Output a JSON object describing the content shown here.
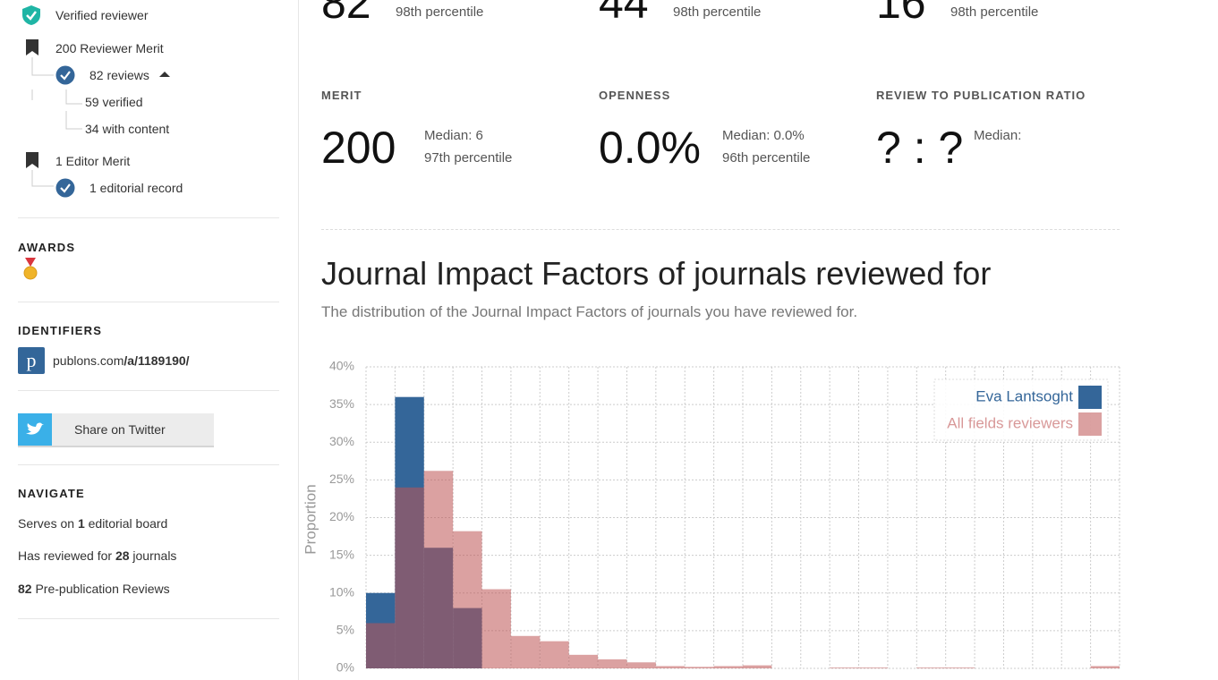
{
  "sidebar": {
    "verified": "Verified reviewer",
    "reviewer_merit": "200 Reviewer Merit",
    "reviews": "82 reviews",
    "verified_reviews": "59 verified",
    "with_content": "34 with content",
    "editor_merit": "1 Editor Merit",
    "editorial_record": "1 editorial record",
    "awards_heading": "AWARDS",
    "identifiers_heading": "IDENTIFIERS",
    "identifier": {
      "host": "publons.com",
      "path": "/a/1189190/"
    },
    "share": "Share on Twitter",
    "navigate_heading": "NAVIGATE",
    "navigate": [
      {
        "before": "Serves on ",
        "bold": "1",
        "after": " editorial board"
      },
      {
        "before": "Has reviewed for ",
        "bold": "28",
        "after": " journals"
      },
      {
        "bold": "82",
        "after": " Pre-publication Reviews"
      }
    ]
  },
  "stats_top": [
    {
      "value": "82",
      "percentile": "98th percentile"
    },
    {
      "value": "44",
      "percentile": "98th percentile"
    },
    {
      "value": "16",
      "percentile": "98th percentile"
    }
  ],
  "stats": [
    {
      "label": "MERIT",
      "value": "200",
      "median": "Median: 6",
      "percentile": "97th percentile"
    },
    {
      "label": "OPENNESS",
      "value": "0.0%",
      "median": "Median: 0.0%",
      "percentile": "96th percentile"
    },
    {
      "label": "REVIEW TO PUBLICATION RATIO",
      "value": "? : ?",
      "median": "Median:"
    }
  ],
  "chart_data": {
    "type": "histogram",
    "title": "Journal Impact Factors of journals reviewed for",
    "subtitle": "The distribution of the Journal Impact Factors of journals you have reviewed for.",
    "y_label": "Proportion",
    "categories": [
      null,
      null,
      null,
      null,
      null,
      null,
      null,
      null,
      null,
      null,
      null,
      null,
      null,
      null,
      null,
      null,
      null,
      null,
      null,
      null,
      null,
      null,
      null,
      null,
      null,
      null
    ],
    "series": [
      {
        "name": "Eva Lantsoght",
        "color": "#346699",
        "values": [
          10,
          36,
          16,
          8,
          0,
          0,
          0,
          0,
          0,
          0,
          0,
          0,
          0,
          0,
          0,
          0,
          0,
          0,
          0,
          0,
          0,
          0,
          0,
          0,
          0,
          0
        ]
      },
      {
        "name": "All fields reviewers",
        "color": "#be5353",
        "values": [
          6,
          24,
          26.2,
          18.2,
          10.5,
          4.3,
          3.6,
          1.8,
          1.2,
          0.8,
          0.3,
          0.2,
          0.3,
          0.4,
          0,
          0,
          0.1,
          0.1,
          0,
          0.1,
          0.1,
          0,
          0,
          0,
          0,
          0.3
        ]
      }
    ],
    "ylim": [
      0,
      40
    ],
    "yticks": [
      {
        "value": 0,
        "label": "0%"
      },
      {
        "value": 5,
        "label": "5%"
      },
      {
        "value": 10,
        "label": "10%"
      },
      {
        "value": 15,
        "label": "15%"
      },
      {
        "value": 20,
        "label": "20%"
      },
      {
        "value": 25,
        "label": "25%"
      },
      {
        "value": 30,
        "label": "30%"
      },
      {
        "value": 35,
        "label": "35%"
      },
      {
        "value": 40,
        "label": "40%"
      }
    ],
    "grid": true,
    "legend": "top-right"
  }
}
